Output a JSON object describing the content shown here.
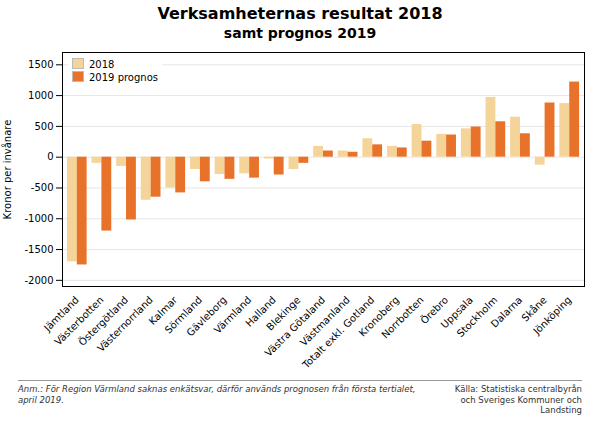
{
  "chart_data": {
    "type": "bar",
    "title": "Verksamheternas resultat 2018",
    "subtitle": "samt prognos 2019",
    "ylabel": "Kronor per invånare",
    "categories": [
      "Jämtland",
      "Västerbotten",
      "Östergötland",
      "Västernorrland",
      "Kalmar",
      "Sörmland",
      "Gävleborg",
      "Värmland",
      "Halland",
      "Blekinge",
      "Västra Götaland",
      "Västmanland",
      "Totalt exkl. Gotland",
      "Kronoberg",
      "Norrbotten",
      "Örebro",
      "Uppsala",
      "Stockholm",
      "Dalarna",
      "Skåne",
      "Jönköping"
    ],
    "series": [
      {
        "name": "2018",
        "color": "#F5D49A",
        "values": [
          -1700,
          -100,
          -150,
          -700,
          -500,
          -200,
          -280,
          -270,
          -30,
          -200,
          175,
          100,
          300,
          175,
          530,
          370,
          460,
          970,
          650,
          -130,
          870
        ]
      },
      {
        "name": "2019 prognos",
        "color": "#E8722A",
        "values": [
          -1750,
          -1200,
          -1020,
          -650,
          -580,
          -400,
          -360,
          -340,
          -290,
          -100,
          100,
          80,
          200,
          150,
          260,
          360,
          490,
          575,
          380,
          880,
          1220
        ]
      }
    ],
    "ylim": [
      -2100,
      1700
    ],
    "yticks": [
      -2000,
      -1500,
      -1000,
      -500,
      0,
      500,
      1000,
      1500
    ],
    "grid": true,
    "legend": "upper left",
    "annotations": [
      "Anm.: För Region Värmland saknas enkätsvar, därför används prognosen från första tertialet,\napril 2019.",
      "Källa: Statistiska centralbyrån\noch Sveriges Kommuner och\nLandsting"
    ]
  }
}
